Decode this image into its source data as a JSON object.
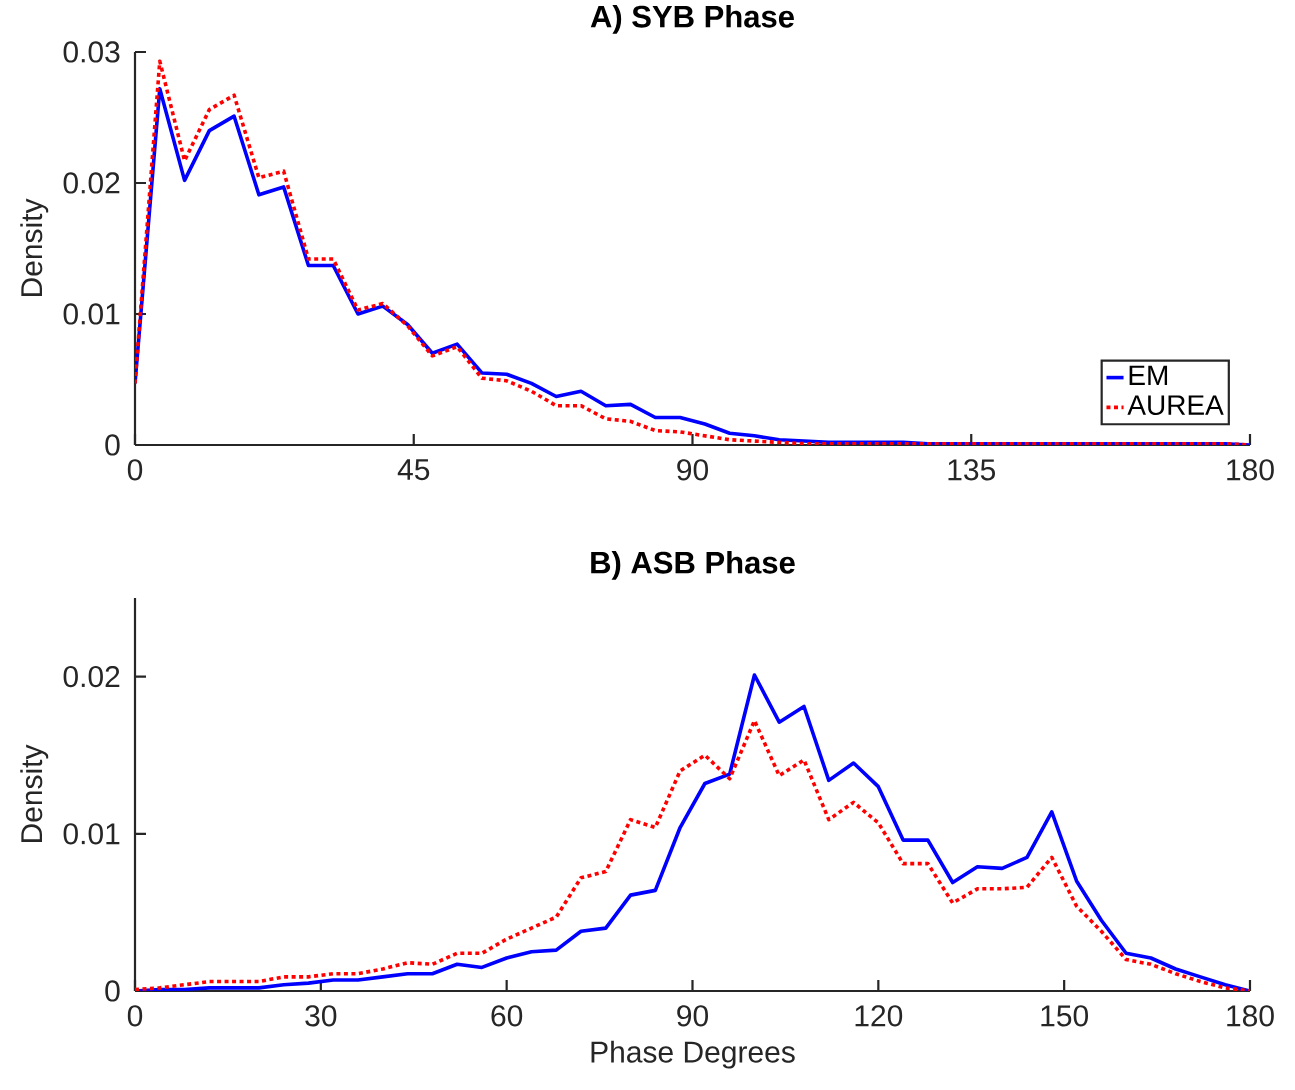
{
  "chart_data": [
    {
      "type": "line",
      "title": "A) SYB Phase",
      "ylabel": "Density",
      "xlim": [
        0,
        180
      ],
      "ylim": [
        0,
        0.03
      ],
      "xticks": [
        0,
        45,
        90,
        135,
        180
      ],
      "yticks": [
        0,
        0.01,
        0.02,
        0.03
      ],
      "legend": "bottom right",
      "x": [
        0,
        4,
        8,
        12,
        16,
        20,
        24,
        28,
        32,
        36,
        40,
        44,
        48,
        52,
        56,
        60,
        64,
        68,
        72,
        76,
        80,
        84,
        88,
        92,
        96,
        100,
        104,
        108,
        112,
        116,
        120,
        124,
        128,
        132,
        136,
        140,
        144,
        148,
        152,
        156,
        160,
        164,
        168,
        172,
        176,
        180
      ],
      "series": [
        {
          "name": "EM",
          "color": "#0000ff",
          "line_style": "solid",
          "values": [
            0.0047,
            0.0272,
            0.0202,
            0.024,
            0.0251,
            0.0191,
            0.0197,
            0.0137,
            0.0137,
            0.01,
            0.0106,
            0.0092,
            0.007,
            0.0077,
            0.0055,
            0.0054,
            0.0047,
            0.0037,
            0.0041,
            0.003,
            0.0031,
            0.0021,
            0.0021,
            0.0016,
            0.0009,
            0.0007,
            0.0004,
            0.0003,
            0.0002,
            0.0002,
            0.0002,
            0.0002,
            0.0001,
            0.0001,
            0.0001,
            0.0001,
            0.0001,
            0.0001,
            0.0001,
            0.0001,
            0.0001,
            0.0001,
            0.0001,
            0.0001,
            0.0001,
            0.0
          ]
        },
        {
          "name": "AUREA",
          "color": "#ff0000",
          "line_style": "dotted",
          "values": [
            0.0047,
            0.0293,
            0.0217,
            0.0256,
            0.0267,
            0.0204,
            0.0209,
            0.0142,
            0.0142,
            0.0103,
            0.0108,
            0.0091,
            0.0068,
            0.0075,
            0.0051,
            0.0049,
            0.0041,
            0.003,
            0.003,
            0.002,
            0.0018,
            0.0011,
            0.001,
            0.0007,
            0.0004,
            0.0003,
            0.0002,
            0.0001,
            0.0001,
            0.0001,
            0.0001,
            0.0001,
            0.0001,
            0.0001,
            0.0001,
            0.0001,
            0.0001,
            0.0001,
            0.0001,
            0.0001,
            0.0001,
            0.0001,
            0.0001,
            0.0001,
            0.0001,
            0.0
          ]
        }
      ]
    },
    {
      "type": "line",
      "title": "B) ASB Phase",
      "xlabel": "Phase Degrees",
      "ylabel": "Density",
      "xlim": [
        0,
        180
      ],
      "ylim": [
        0,
        0.025
      ],
      "xticks": [
        0,
        30,
        60,
        90,
        120,
        150,
        180
      ],
      "yticks": [
        0,
        0.01,
        0.02
      ],
      "x": [
        0,
        4,
        8,
        12,
        16,
        20,
        24,
        28,
        32,
        36,
        40,
        44,
        48,
        52,
        56,
        60,
        64,
        68,
        72,
        76,
        80,
        84,
        88,
        92,
        96,
        100,
        104,
        108,
        112,
        116,
        120,
        124,
        128,
        132,
        136,
        140,
        144,
        148,
        152,
        156,
        160,
        164,
        168,
        172,
        176,
        180
      ],
      "series": [
        {
          "color": "#0000ff",
          "line_style": "solid",
          "values": [
            0.0,
            0.0001,
            0.0001,
            0.0002,
            0.0002,
            0.0002,
            0.0004,
            0.0005,
            0.0007,
            0.0007,
            0.0009,
            0.0011,
            0.0011,
            0.0017,
            0.0015,
            0.0021,
            0.0025,
            0.0026,
            0.0038,
            0.004,
            0.0061,
            0.0064,
            0.0104,
            0.0132,
            0.0138,
            0.0201,
            0.0171,
            0.0181,
            0.0134,
            0.0145,
            0.013,
            0.0096,
            0.0096,
            0.0069,
            0.0079,
            0.0078,
            0.0085,
            0.0114,
            0.007,
            0.0045,
            0.0024,
            0.0021,
            0.0014,
            0.0009,
            0.0004,
            0.0
          ]
        },
        {
          "color": "#ff0000",
          "line_style": "dotted",
          "values": [
            0.0001,
            0.0002,
            0.0004,
            0.0006,
            0.0006,
            0.0006,
            0.0009,
            0.0009,
            0.0011,
            0.0011,
            0.0014,
            0.0018,
            0.0017,
            0.0024,
            0.0024,
            0.0033,
            0.004,
            0.0047,
            0.0072,
            0.0076,
            0.0109,
            0.0104,
            0.014,
            0.015,
            0.0135,
            0.0172,
            0.0137,
            0.0147,
            0.0109,
            0.012,
            0.0107,
            0.0081,
            0.0081,
            0.0056,
            0.0065,
            0.0065,
            0.0066,
            0.0085,
            0.0054,
            0.0038,
            0.002,
            0.0017,
            0.0011,
            0.0006,
            0.0002,
            0.0
          ]
        }
      ]
    }
  ]
}
